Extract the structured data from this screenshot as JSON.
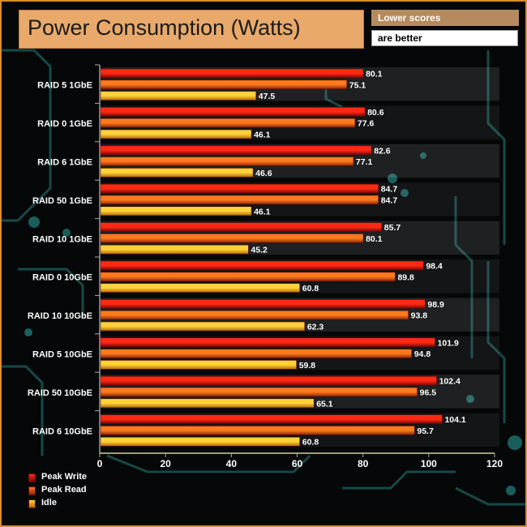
{
  "header": {
    "title": "Power Consumption (Watts)",
    "note_line1": "Lower scores",
    "note_line2": "are better"
  },
  "chart_data": {
    "type": "bar",
    "orientation": "horizontal",
    "title": "Power Consumption (Watts)",
    "xlabel": "",
    "ylabel": "",
    "xlim": [
      0,
      120
    ],
    "xticks": [
      0,
      20,
      40,
      60,
      80,
      100,
      120
    ],
    "categories": [
      "RAID 5 1GbE",
      "RAID 0 1GbE",
      "RAID 6 1GbE",
      "RAID 50 1GbE",
      "RAID 10 1GbE",
      "RAID 0 10GbE",
      "RAID 10 10GbE",
      "RAID 5 10GbE",
      "RAID 50 10GbE",
      "RAID 6 10GbE"
    ],
    "series": [
      {
        "name": "Peak Write",
        "color": "#e11a0c",
        "values": [
          80.1,
          80.6,
          82.6,
          84.7,
          85.7,
          98.4,
          98.9,
          101.9,
          102.4,
          104.1
        ]
      },
      {
        "name": "Peak Read",
        "color": "#ee5a14",
        "values": [
          75.1,
          77.6,
          77.1,
          84.7,
          80.1,
          89.8,
          93.8,
          94.8,
          96.5,
          95.7
        ]
      },
      {
        "name": "Idle",
        "color": "#f6b214",
        "values": [
          47.5,
          46.1,
          46.6,
          46.1,
          45.2,
          60.8,
          62.3,
          59.8,
          65.1,
          60.8
        ]
      }
    ],
    "legend_position": "bottom-left",
    "grid": false
  },
  "colors": {
    "frame": "#d98c2e",
    "title_bg": "#e8a96a",
    "note_bg": "#b58a5e",
    "circuit": "#1e5f5c"
  }
}
